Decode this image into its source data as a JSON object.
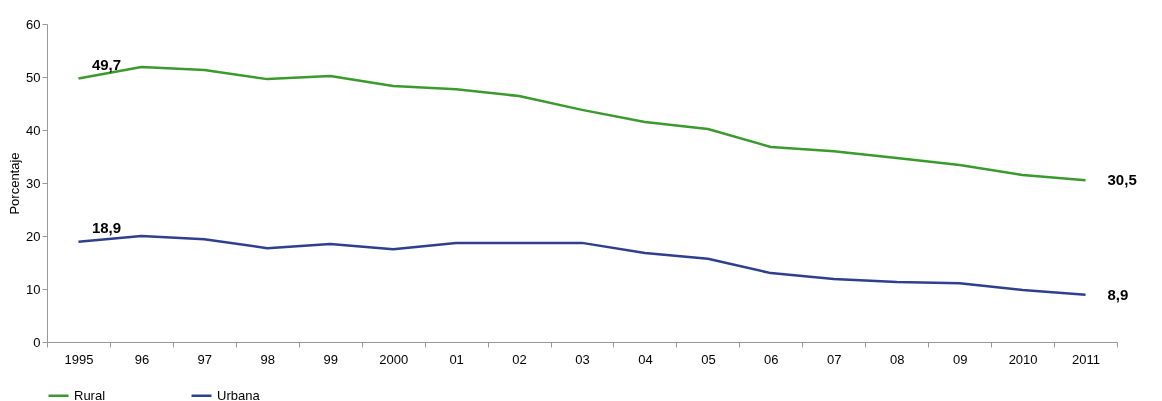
{
  "chart_data": {
    "type": "line",
    "ylabel": "Porcentaje",
    "categories": [
      "1995",
      "96",
      "97",
      "98",
      "99",
      "2000",
      "01",
      "02",
      "03",
      "04",
      "05",
      "06",
      "07",
      "08",
      "09",
      "2010",
      "2011"
    ],
    "series": [
      {
        "name": "Rural",
        "color": "#3a9a2e",
        "values": [
          49.7,
          51.9,
          51.3,
          49.6,
          50.2,
          48.3,
          47.7,
          46.4,
          43.8,
          41.5,
          40.2,
          36.8,
          36.0,
          34.7,
          33.4,
          31.5,
          30.5
        ],
        "value_labels": [
          "49,7",
          null,
          null,
          null,
          null,
          null,
          null,
          null,
          null,
          null,
          null,
          null,
          null,
          null,
          null,
          null,
          "30,5"
        ]
      },
      {
        "name": "Urbana",
        "color": "#2e3f8f",
        "values": [
          18.9,
          20.0,
          19.4,
          17.7,
          18.5,
          17.5,
          18.7,
          18.7,
          18.7,
          16.8,
          15.7,
          13.0,
          11.9,
          11.3,
          11.1,
          9.8,
          8.9
        ],
        "value_labels": [
          "18,9",
          null,
          null,
          null,
          null,
          null,
          null,
          null,
          null,
          null,
          null,
          null,
          null,
          null,
          null,
          null,
          "8,9"
        ]
      }
    ],
    "ylim": [
      0,
      60
    ],
    "yticks": [
      0,
      10,
      20,
      30,
      40,
      50,
      60
    ],
    "grid": false,
    "legend": "bottom",
    "line_style": "solid",
    "marker": "none"
  }
}
